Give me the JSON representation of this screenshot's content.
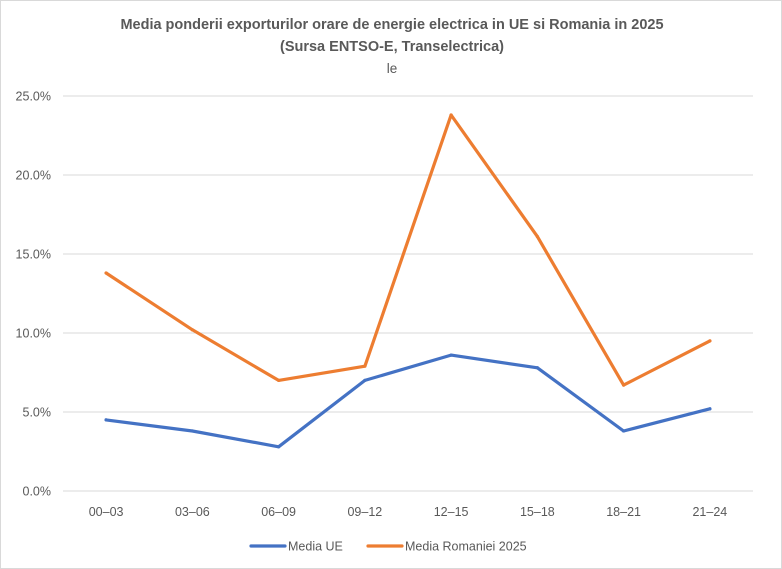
{
  "chart_data": {
    "type": "line",
    "title": "Media ponderii exporturilor orare de energie electrica in UE si Romania in 2025",
    "subtitle": "(Sursa ENTSO-E, Transelectrica)",
    "stray_text": "le",
    "categories": [
      "00–03",
      "03–06",
      "06–09",
      "09–12",
      "12–15",
      "15–18",
      "18–21",
      "21–24"
    ],
    "ylim": [
      0,
      25
    ],
    "yticks": [
      0,
      5,
      10,
      15,
      20,
      25
    ],
    "ytick_labels": [
      "0.0%",
      "5.0%",
      "10.0%",
      "15.0%",
      "20.0%",
      "25.0%"
    ],
    "xlabel": "",
    "ylabel": "",
    "grid": true,
    "legend_position": "bottom",
    "series": [
      {
        "name": "Media UE",
        "color": "#4472c4",
        "values": [
          4.5,
          3.8,
          2.8,
          7.0,
          8.6,
          7.8,
          3.8,
          5.2
        ]
      },
      {
        "name": "Media Romaniei 2025",
        "color": "#ed7d31",
        "values": [
          13.8,
          10.2,
          7.0,
          7.9,
          23.8,
          16.1,
          6.7,
          9.5
        ]
      }
    ]
  }
}
